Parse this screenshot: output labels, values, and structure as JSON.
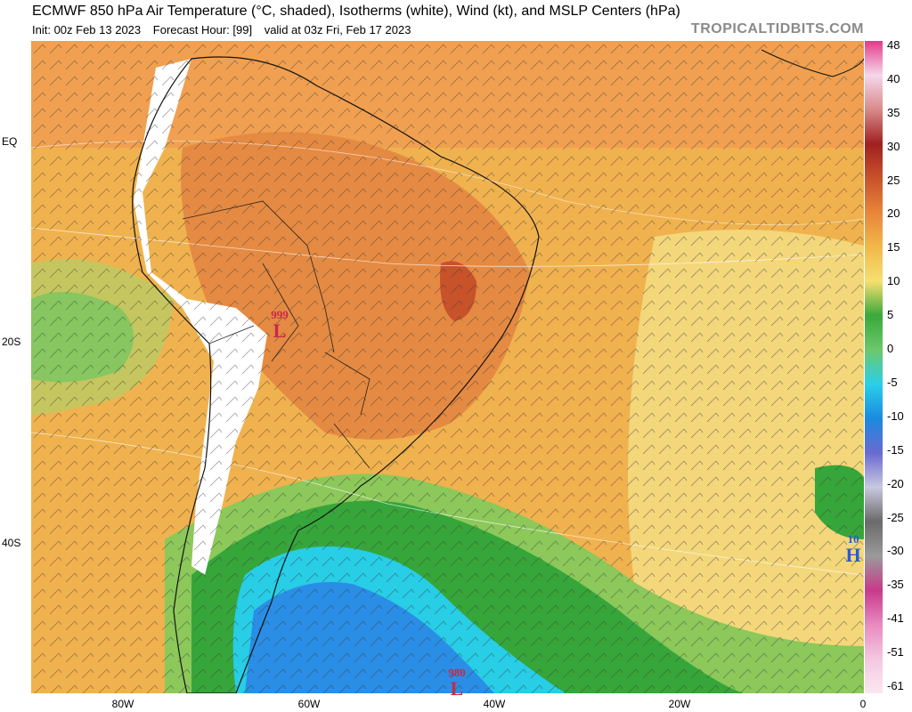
{
  "header": {
    "title": "ECMWF 850 hPa Air Temperature (°C, shaded), Isotherms (white), Wind (kt), and MSLP Centers (hPa)",
    "init": "Init: 00z Feb 13 2023",
    "forecast_hour": "Forecast Hour: [99]",
    "valid": "valid at 03z Fri, Feb 17 2023",
    "brand": "TROPICALTIDBITS.COM"
  },
  "axes": {
    "lat_labels": [
      "EQ",
      "20S",
      "40S"
    ],
    "lon_labels": [
      "80W",
      "60W",
      "40W",
      "20W",
      "0"
    ]
  },
  "colorbar": {
    "labels": [
      "48",
      "40",
      "35",
      "30",
      "25",
      "20",
      "15",
      "10",
      "5",
      "0",
      "-5",
      "-10",
      "-15",
      "-20",
      "-25",
      "-30",
      "-35",
      "-41",
      "-51",
      "-61"
    ],
    "colors": [
      "#e23a8a",
      "#f6d7ec",
      "#d88a8a",
      "#a02020",
      "#c8522a",
      "#e8853a",
      "#f2b84a",
      "#f6e070",
      "#3aa83a",
      "#6cc86c",
      "#2ad0e8",
      "#1a8ae0",
      "#6a6ad0",
      "#c8c8e0",
      "#6a6a6a",
      "#9a9a9a",
      "#c83a8a",
      "#e88ac0",
      "#f4c8e0",
      "#fbe8f0"
    ]
  },
  "pressure_centers": [
    {
      "id": "low-paraguay",
      "type": "L",
      "value": "999",
      "color": "#c8284a"
    },
    {
      "id": "low-south-atlantic",
      "type": "L",
      "value": "980",
      "color": "#c8284a"
    },
    {
      "id": "high-east-atlantic",
      "type": "H",
      "value": "10",
      "color": "#2a5ad8"
    }
  ]
}
